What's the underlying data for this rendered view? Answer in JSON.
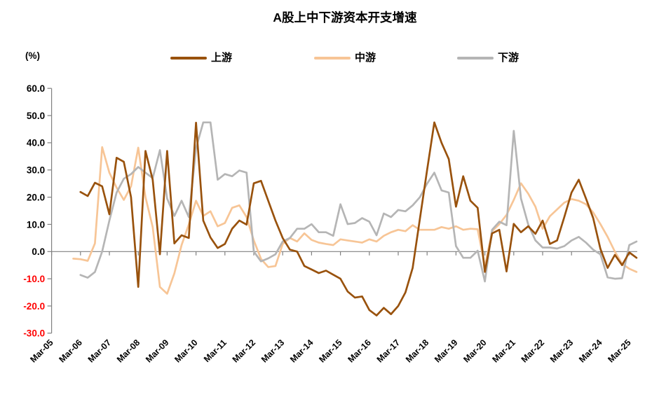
{
  "title": "A股上中下游资本开支增速",
  "y_axis": {
    "unit_label": "(%)",
    "ticks": [
      60.0,
      50.0,
      40.0,
      30.0,
      20.0,
      10.0,
      0.0,
      -10.0,
      -20.0,
      -30.0
    ],
    "positive_color": "#000000",
    "negative_color": "#FF0000",
    "axis_color": "#808080"
  },
  "x_axis": {
    "labels": [
      "Mar-05",
      "Mar-06",
      "Mar-07",
      "Mar-08",
      "Mar-09",
      "Mar-10",
      "Mar-11",
      "Mar-12",
      "Mar-13",
      "Mar-14",
      "Mar-15",
      "Mar-16",
      "Mar-17",
      "Mar-18",
      "Mar-19",
      "Mar-20",
      "Mar-21",
      "Mar-22",
      "Mar-23",
      "Mar-24",
      "Mar-25"
    ]
  },
  "legend": {
    "items": [
      {
        "label": "上游",
        "color": "#99520D"
      },
      {
        "label": "中游",
        "color": "#F7C596"
      },
      {
        "label": "下游",
        "color": "#B5B5B5"
      }
    ]
  },
  "chart_data": {
    "type": "line",
    "x_unit": "quarter",
    "x_quarter0_label": "Mar-05",
    "ylim": [
      -30,
      60
    ],
    "grid": "zero-line-only",
    "legend_position": "top",
    "series": [
      {
        "name": "上游",
        "color": "#99520D",
        "start_quarter_index": 4,
        "values": [
          21.9,
          20.4,
          25.3,
          24.0,
          13.7,
          34.5,
          33.0,
          20.0,
          -13.0,
          37.0,
          26.4,
          -1.0,
          37.0,
          3.0,
          6.0,
          5.0,
          47.4,
          11.4,
          5.2,
          1.3,
          2.8,
          8.4,
          11.4,
          9.9,
          25.1,
          26.0,
          18.7,
          11.4,
          5.0,
          0.7,
          0.0,
          -5.3,
          -6.6,
          -7.9,
          -7.0,
          -8.5,
          -10.0,
          -14.7,
          -16.9,
          -16.5,
          -21.5,
          -23.5,
          -20.7,
          -23.0,
          -20.0,
          -15.0,
          -6.0,
          12.0,
          30.0,
          47.5,
          40.0,
          34.0,
          16.5,
          27.7,
          18.7,
          16.1,
          -7.5,
          6.7,
          8.0,
          -7.3,
          10.2,
          7.1,
          9.3,
          6.5,
          11.4,
          2.8,
          4.1,
          12.7,
          21.7,
          26.4,
          19.5,
          12.3,
          1.0,
          -6.0,
          -1.2,
          -5.0,
          -0.3,
          -2.3
        ]
      },
      {
        "name": "中游",
        "color": "#F7C596",
        "start_quarter_index": 3,
        "values": [
          -2.6,
          -2.8,
          -3.4,
          3.0,
          38.4,
          29.0,
          23.5,
          19.0,
          24.0,
          38.2,
          20.0,
          9.0,
          -13.0,
          -15.5,
          -8.0,
          2.4,
          10.0,
          18.7,
          13.1,
          14.8,
          9.3,
          10.5,
          16.1,
          17.0,
          12.7,
          4.1,
          -2.7,
          -5.7,
          -5.3,
          2.8,
          5.0,
          3.7,
          6.7,
          4.3,
          3.3,
          2.8,
          2.4,
          4.5,
          4.1,
          3.7,
          3.3,
          4.5,
          3.7,
          5.8,
          7.1,
          8.0,
          7.5,
          9.7,
          8.0,
          8.0,
          8.0,
          9.0,
          8.4,
          9.3,
          8.0,
          8.4,
          8.2,
          -5.5,
          7.5,
          10.1,
          13.5,
          19.0,
          25.1,
          21.3,
          16.5,
          8.4,
          13.0,
          15.5,
          18.0,
          19.3,
          18.7,
          17.4,
          14.4,
          10.1,
          5.4,
          0.0,
          -4.5,
          -6.3,
          -7.5
        ]
      },
      {
        "name": "下游",
        "color": "#B5B5B5",
        "start_quarter_index": 4,
        "values": [
          -8.6,
          -9.6,
          -7.5,
          0.0,
          11.4,
          21.7,
          26.8,
          28.5,
          31.1,
          29.0,
          27.0,
          37.3,
          19.5,
          13.1,
          18.7,
          12.7,
          38.0,
          47.5,
          47.5,
          26.4,
          28.5,
          27.7,
          29.8,
          29.0,
          0.0,
          -3.6,
          -2.5,
          -1.0,
          3.7,
          5.0,
          8.4,
          8.4,
          10.1,
          7.1,
          7.1,
          5.8,
          17.4,
          10.1,
          10.5,
          12.3,
          11.0,
          6.0,
          14.0,
          12.7,
          15.3,
          14.8,
          17.0,
          20.0,
          25.0,
          29.0,
          22.5,
          21.7,
          2.0,
          -2.3,
          -2.3,
          0.3,
          -11.0,
          8.0,
          11.0,
          9.7,
          44.4,
          19.5,
          10.0,
          4.1,
          1.5,
          1.5,
          1.1,
          2.0,
          4.1,
          5.4,
          3.3,
          0.7,
          -1.0,
          -9.5,
          -10.0,
          -9.8,
          2.4,
          3.7
        ]
      }
    ]
  }
}
